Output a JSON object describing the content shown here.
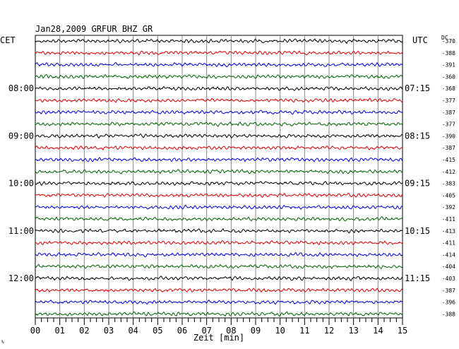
{
  "chart_data": {
    "type": "line",
    "title": "Jan28,2009   GRFUR BHZ GR",
    "left_timezone": "CET",
    "right_timezone": "UTC",
    "dc_label": "DC",
    "xlabel": "Zeit [min]",
    "xlim": [
      0,
      15
    ],
    "x_ticks": [
      "00",
      "01",
      "02",
      "03",
      "04",
      "05",
      "06",
      "07",
      "08",
      "09",
      "10",
      "11",
      "12",
      "13",
      "14",
      "15"
    ],
    "grid": "vertical-every-minute",
    "trace_colors": [
      "#000000",
      "#d40000",
      "#0000d4",
      "#006400"
    ],
    "left_hour_labels": [
      {
        "trace": 4,
        "label": "08:00"
      },
      {
        "trace": 8,
        "label": "09:00"
      },
      {
        "trace": 12,
        "label": "10:00"
      },
      {
        "trace": 16,
        "label": "11:00"
      },
      {
        "trace": 20,
        "label": "12:00"
      }
    ],
    "right_hour_labels": [
      {
        "trace": 4,
        "label": "07:15"
      },
      {
        "trace": 8,
        "label": "08:15"
      },
      {
        "trace": 12,
        "label": "09:15"
      },
      {
        "trace": 16,
        "label": "10:15"
      },
      {
        "trace": 20,
        "label": "11:15"
      }
    ],
    "dc_offsets": [
      "-370",
      "-388",
      "-391",
      "-360",
      "-368",
      "-377",
      "-387",
      "-377",
      "-390",
      "-387",
      "-415",
      "-412",
      "-383",
      "-405",
      "-392",
      "-411",
      "-413",
      "-411",
      "-414",
      "-404",
      "-403",
      "-387",
      "-396",
      "-388"
    ]
  },
  "footer_mark": "%"
}
